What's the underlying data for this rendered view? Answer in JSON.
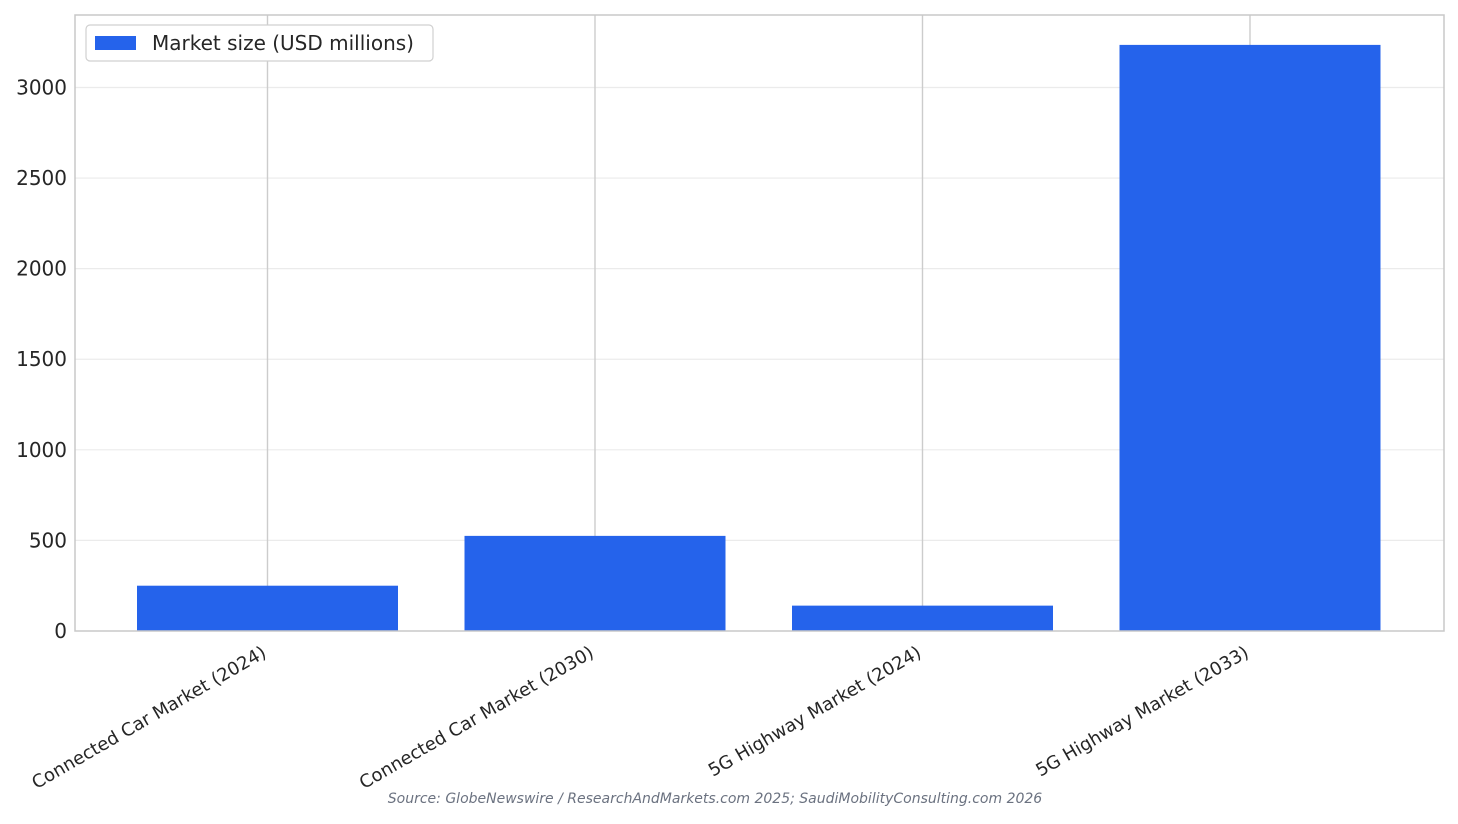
{
  "chart_data": {
    "type": "bar",
    "title": "",
    "xlabel": "",
    "ylabel": "",
    "categories": [
      "Connected Car Market (2024)",
      "Connected Car Market (2030)",
      "5G Highway Market (2024)",
      "5G Highway Market (2033)"
    ],
    "series": [
      {
        "name": "Market size (USD millions)",
        "values": [
          250,
          525,
          140,
          3235
        ],
        "color": "#2563eb"
      }
    ],
    "ylim": [
      0,
      3400
    ],
    "yticks": [
      0,
      500,
      1000,
      1500,
      2000,
      2500,
      3000
    ],
    "grid": true,
    "legend_position": "top-left"
  },
  "source_note": "Source: GlobeNewswire / ResearchAndMarkets.com 2025; SaudiMobilityConsulting.com 2026"
}
